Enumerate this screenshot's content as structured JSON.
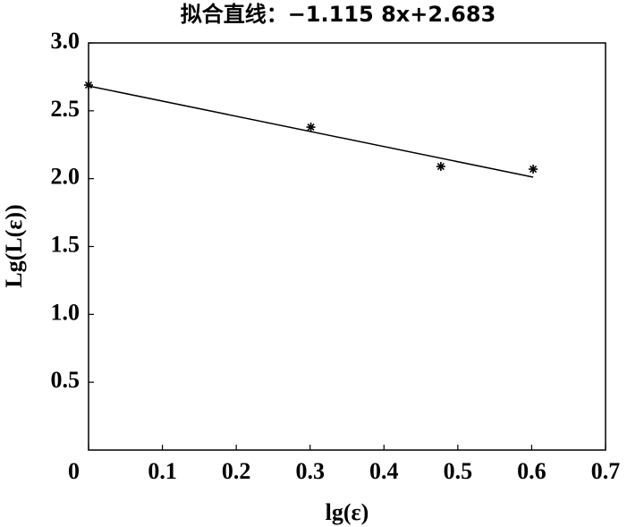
{
  "chart_data": {
    "type": "scatter",
    "title": "拟合直线：−1.115 8x+2.683",
    "x_label": "lg(ε)",
    "y_label": "Lg(L(ε))",
    "points": {
      "x": [
        0,
        0.301,
        0.477,
        0.602
      ],
      "values": [
        2.69,
        2.38,
        2.09,
        2.07
      ],
      "color": "#000000"
    },
    "fit_line": {
      "x": [
        0,
        0.602
      ],
      "values": [
        2.683,
        2.011
      ],
      "color": "#000000"
    },
    "xlim": [
      0,
      0.7
    ],
    "xticks": [
      0,
      0.1,
      0.2,
      0.3,
      0.4,
      0.5,
      0.6,
      0.7
    ],
    "ylim": [
      0,
      3
    ],
    "yticks": [
      {
        "value": 0.5,
        "label": "0.5"
      },
      {
        "value": 1,
        "label": "1.0"
      },
      {
        "value": 1.5,
        "label": "1.5"
      },
      {
        "value": 2,
        "label": "2.0"
      },
      {
        "value": 2.5,
        "label": "2.5"
      },
      {
        "value": 3,
        "label": "3.0"
      }
    ],
    "grid": false
  }
}
